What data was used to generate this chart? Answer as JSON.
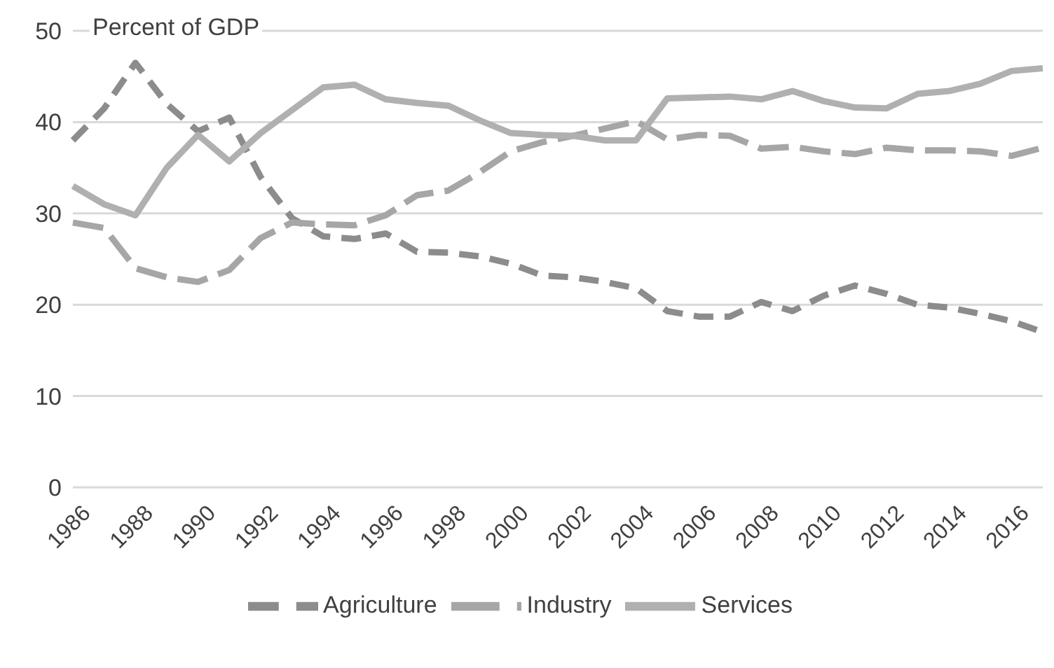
{
  "chart_data": {
    "type": "line",
    "ylabel": "Percent of GDP",
    "categories": [
      "1986",
      null,
      "1988",
      null,
      "1990",
      null,
      "1992",
      null,
      "1994",
      null,
      "1996",
      null,
      "1998",
      null,
      "2000",
      null,
      "2002",
      null,
      "2004",
      null,
      "2006",
      null,
      "2008",
      null,
      "2010",
      null,
      "2012",
      null,
      "2014",
      null,
      "2016",
      null
    ],
    "series": [
      {
        "name": "Agriculture",
        "color": "#8c8c8e",
        "line_style": "dashed",
        "values": [
          38,
          41.5,
          46.5,
          42,
          39,
          40.5,
          34,
          29.5,
          27.5,
          27.2,
          27.8,
          25.8,
          25.7,
          25.3,
          24.5,
          23.2,
          23,
          22.5,
          21.8,
          19.3,
          18.7,
          18.7,
          20.3,
          19.3,
          21,
          22.1,
          21.2,
          20,
          19.7,
          19,
          18.2,
          17
        ]
      },
      {
        "name": "Industry",
        "color": "#a6a6a6",
        "line_style": "dashed",
        "values": [
          29,
          28.4,
          24,
          23,
          22.5,
          23.8,
          27.3,
          29,
          28.8,
          28.7,
          29.8,
          32,
          32.5,
          34.5,
          36.8,
          37.8,
          38.5,
          39.3,
          40.1,
          38.1,
          38.6,
          38.5,
          37.1,
          37.3,
          36.8,
          36.5,
          37.2,
          36.9,
          36.9,
          36.8,
          36.3,
          37.2
        ]
      },
      {
        "name": "Services",
        "color": "#b0b0b0",
        "line_style": "solid",
        "values": [
          33,
          31,
          29.8,
          35,
          38.6,
          35.7,
          38.8,
          41.3,
          43.8,
          44.1,
          42.5,
          42.1,
          41.8,
          40.2,
          38.8,
          38.6,
          38.5,
          38,
          38,
          42.6,
          42.7,
          42.8,
          42.5,
          43.4,
          42.3,
          41.6,
          41.5,
          43.1,
          43.4,
          44.2,
          45.6,
          45.9
        ]
      }
    ],
    "ylim": [
      0,
      50
    ],
    "yticks": [
      0,
      10,
      20,
      30,
      40,
      50
    ],
    "grid": "y",
    "legend": "bottom",
    "marker": "none"
  }
}
